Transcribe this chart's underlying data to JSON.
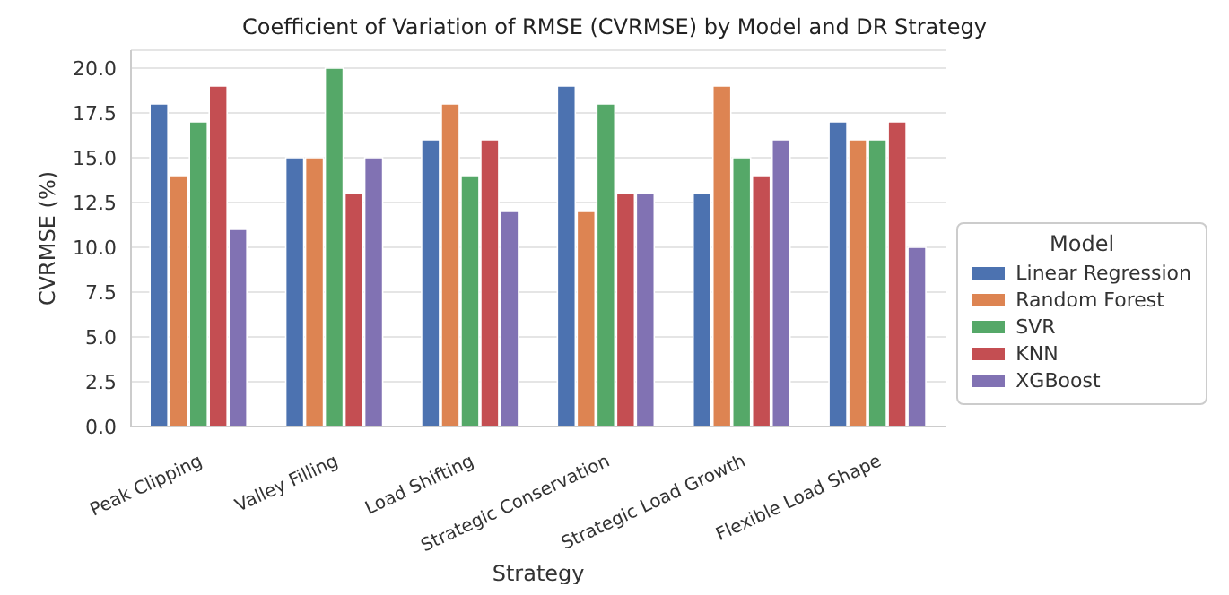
{
  "chart_data": {
    "type": "bar",
    "title": "Coefficient of Variation of RMSE (CVRMSE) by Model and DR Strategy",
    "xlabel": "Strategy",
    "ylabel": "CVRMSE (%)",
    "legend_title": "Model",
    "categories": [
      "Peak Clipping",
      "Valley Filling",
      "Load Shifting",
      "Strategic Conservation",
      "Strategic Load Growth",
      "Flexible Load Shape"
    ],
    "series": [
      {
        "name": "Linear Regression",
        "color": "#4c72b0",
        "values": [
          18,
          15,
          16,
          19,
          13,
          17
        ]
      },
      {
        "name": "Random Forest",
        "color": "#dd8452",
        "values": [
          14,
          15,
          18,
          12,
          19,
          16
        ]
      },
      {
        "name": "SVR",
        "color": "#55a868",
        "values": [
          17,
          20,
          14,
          18,
          15,
          16
        ]
      },
      {
        "name": "KNN",
        "color": "#c44e52",
        "values": [
          19,
          13,
          16,
          13,
          14,
          17
        ]
      },
      {
        "name": "XGBoost",
        "color": "#8172b3",
        "values": [
          11,
          15,
          12,
          13,
          16,
          10
        ]
      }
    ],
    "ylim": [
      0,
      21
    ],
    "yticks": [
      {
        "value": 0,
        "label": "0.0"
      },
      {
        "value": 2.5,
        "label": "2.5"
      },
      {
        "value": 5,
        "label": "5.0"
      },
      {
        "value": 7.5,
        "label": "7.5"
      },
      {
        "value": 10,
        "label": "10.0"
      },
      {
        "value": 12.5,
        "label": "12.5"
      },
      {
        "value": 15,
        "label": "15.0"
      },
      {
        "value": 17.5,
        "label": "17.5"
      },
      {
        "value": 20,
        "label": "20.0"
      }
    ],
    "grid": "y",
    "legend": "right"
  }
}
